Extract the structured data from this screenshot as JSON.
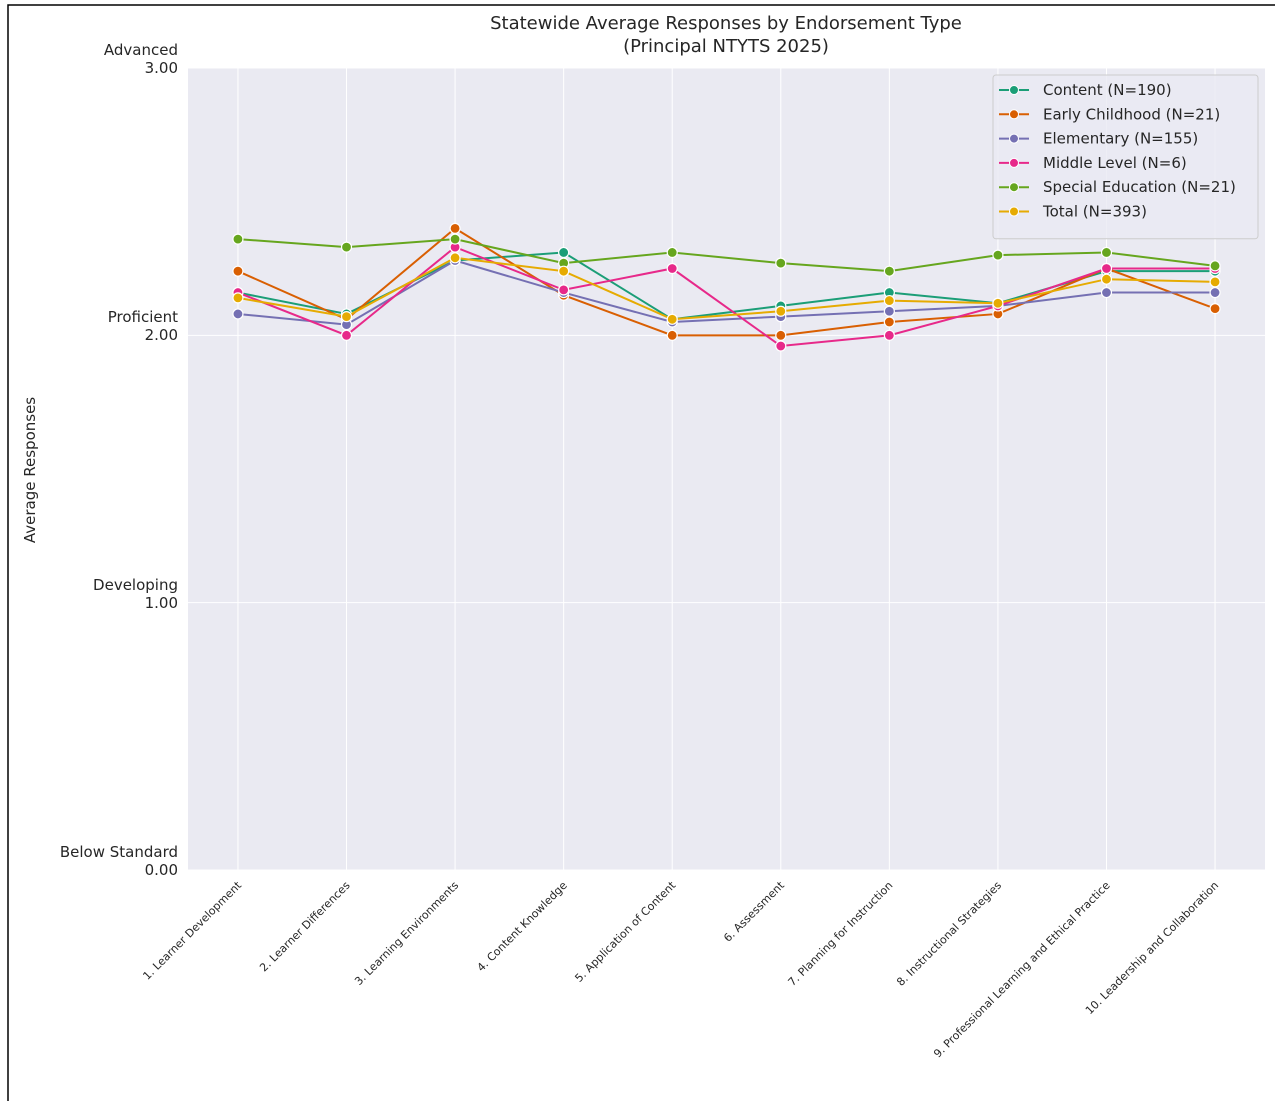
{
  "chart_data": {
    "type": "line",
    "title": "Statewide Average Responses by Endorsement Type",
    "subtitle": "(Principal NTYTS 2025)",
    "y_label": "Average Responses",
    "categories": [
      "1. Learner Development",
      "2. Learner Differences",
      "3. Learning Environments",
      "4. Content Knowledge",
      "5. Application of Content",
      "6. Assessment",
      "7. Planning for Instruction",
      "8. Instructional Strategies",
      "9. Professional Learning and Ethical Practice",
      "10. Leadership and Collaboration"
    ],
    "series": [
      {
        "name": "Content (N=190)",
        "color": "#1b9e77",
        "values": [
          2.16,
          2.08,
          2.28,
          2.31,
          2.06,
          2.11,
          2.16,
          2.12,
          2.24,
          2.24
        ]
      },
      {
        "name": "Early Childhood (N=21)",
        "color": "#d95f02",
        "values": [
          2.24,
          2.06,
          2.4,
          2.15,
          2.0,
          2.0,
          2.05,
          2.08,
          2.25,
          2.1
        ]
      },
      {
        "name": "Elementary (N=155)",
        "color": "#7570b3",
        "values": [
          2.08,
          2.04,
          2.28,
          2.16,
          2.05,
          2.07,
          2.09,
          2.11,
          2.16,
          2.16
        ]
      },
      {
        "name": "Middle Level (N=6)",
        "color": "#e7298a",
        "values": [
          2.16,
          2.0,
          2.33,
          2.17,
          2.25,
          1.96,
          2.0,
          2.11,
          2.25,
          2.25
        ]
      },
      {
        "name": "Special Education (N=21)",
        "color": "#66a61e",
        "values": [
          2.36,
          2.33,
          2.36,
          2.27,
          2.31,
          2.27,
          2.24,
          2.3,
          2.31,
          2.26
        ]
      },
      {
        "name": "Total (N=393)",
        "color": "#e6ab02",
        "values": [
          2.14,
          2.07,
          2.29,
          2.24,
          2.06,
          2.09,
          2.13,
          2.12,
          2.21,
          2.2
        ]
      }
    ],
    "ylim": [
      0,
      3
    ],
    "yticks": [
      {
        "value": 0,
        "label": "Below Standard\n0.00"
      },
      {
        "value": 1,
        "label": "Developing\n1.00"
      },
      {
        "value": 2,
        "label": "Proficient\n2.00"
      },
      {
        "value": 3,
        "label": "Advanced\n3.00"
      }
    ],
    "grid": true,
    "legend": "upper right"
  }
}
